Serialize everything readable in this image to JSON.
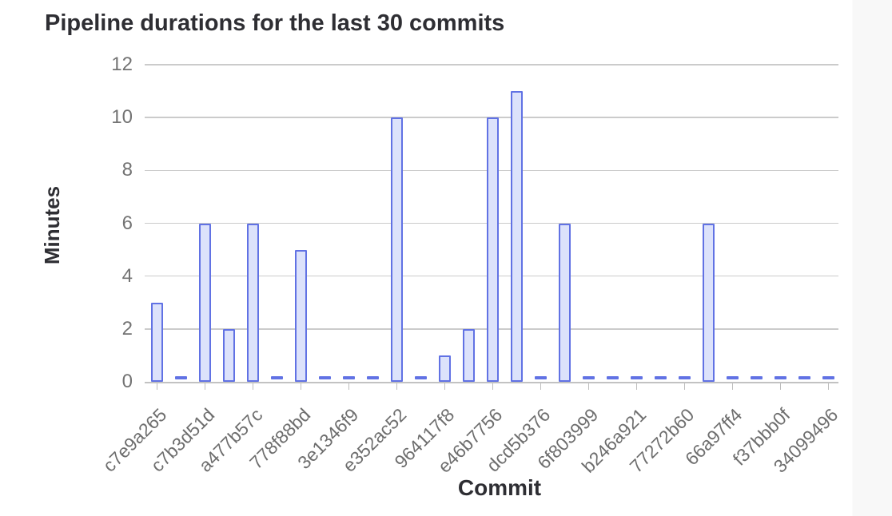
{
  "header": {
    "title": "Pipeline durations for the last 30 commits"
  },
  "chart_data": {
    "type": "bar",
    "title": "Pipeline durations for the last 30 commits",
    "xlabel": "Commit",
    "ylabel": "Minutes",
    "ylim": [
      0,
      12
    ],
    "yticks": [
      0,
      2,
      4,
      6,
      8,
      10,
      12
    ],
    "grid": true,
    "legend_position": "none",
    "categories": [
      "c7e9a265",
      "",
      "c7b3d51d",
      "",
      "a477b57c",
      "",
      "778f88bd",
      "",
      "3e1346f9",
      "",
      "e352ac52",
      "",
      "964117f8",
      "",
      "e46b7756",
      "",
      "dcd5b376",
      "",
      "6f803999",
      "",
      "b246a921",
      "",
      "77272b60",
      "",
      "66a97ff4",
      "",
      "f37bbb0f",
      "",
      "34099496"
    ],
    "values": [
      3,
      0,
      6,
      2,
      6,
      0,
      5,
      0,
      0,
      0,
      10,
      0,
      1,
      2,
      10,
      11,
      0,
      6,
      0,
      0,
      0,
      0,
      0,
      6,
      0,
      0,
      0,
      0,
      0
    ],
    "x_tick_labels": [
      "c7e9a265",
      "c7b3d51d",
      "a477b57c",
      "778f88bd",
      "3e1346f9",
      "e352ac52",
      "964117f8",
      "e46b7756",
      "dcd5b376",
      "6f803999",
      "b246a921",
      "77272b60",
      "66a97ff4",
      "f37bbb0f",
      "34099496"
    ],
    "colors": {
      "bar_fill": "#dce2fb",
      "bar_border": "#6172e4",
      "gridline": "#cbcbcb",
      "axis_line": "#c2c2c2",
      "tick_text": "#737373",
      "title_text": "#2e2e33"
    }
  }
}
